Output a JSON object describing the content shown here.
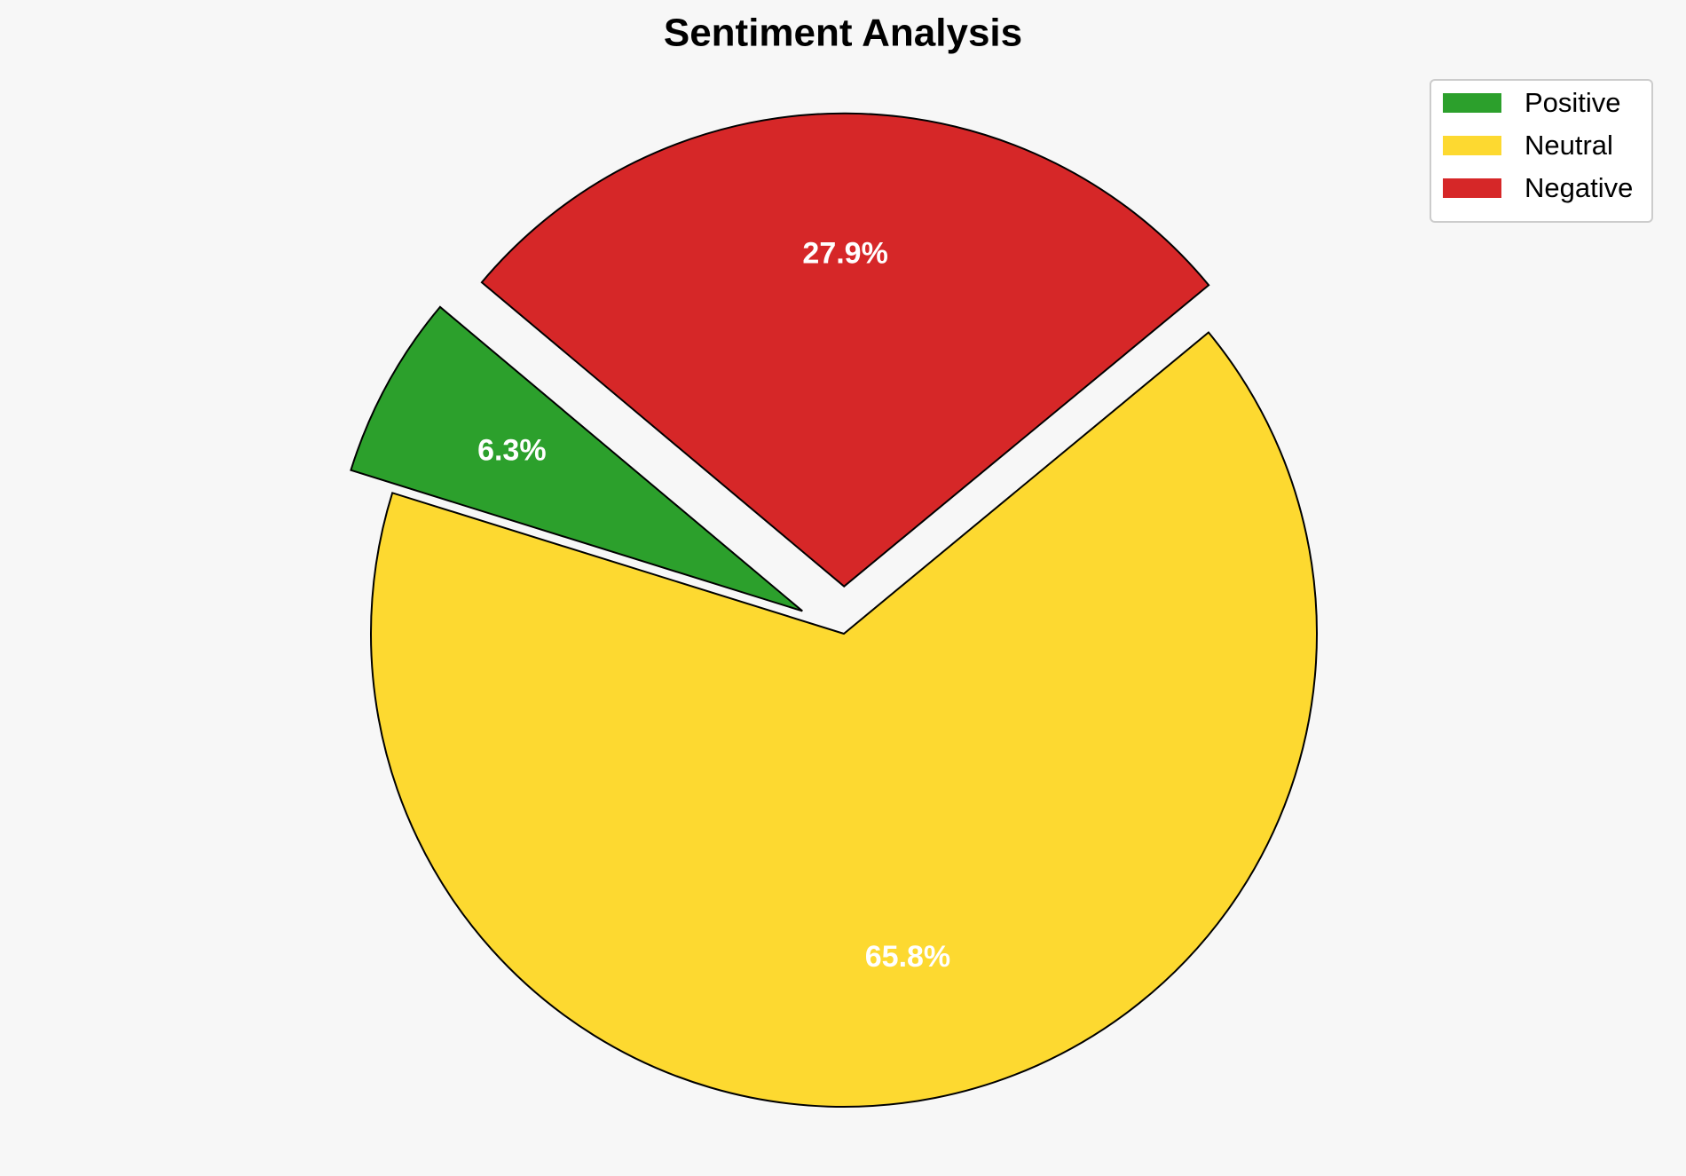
{
  "chart_data": {
    "type": "pie",
    "title": "Sentiment Analysis",
    "categories": [
      "Positive",
      "Neutral",
      "Negative"
    ],
    "values": [
      6.3,
      65.8,
      27.9
    ],
    "value_labels": [
      "6.3%",
      "65.8%",
      "27.9%"
    ],
    "colors": [
      "#2ca02c",
      "#fdd930",
      "#d62728"
    ],
    "explode": [
      0.1,
      0,
      0.1
    ],
    "startangle": 140,
    "legend": "upper right"
  }
}
